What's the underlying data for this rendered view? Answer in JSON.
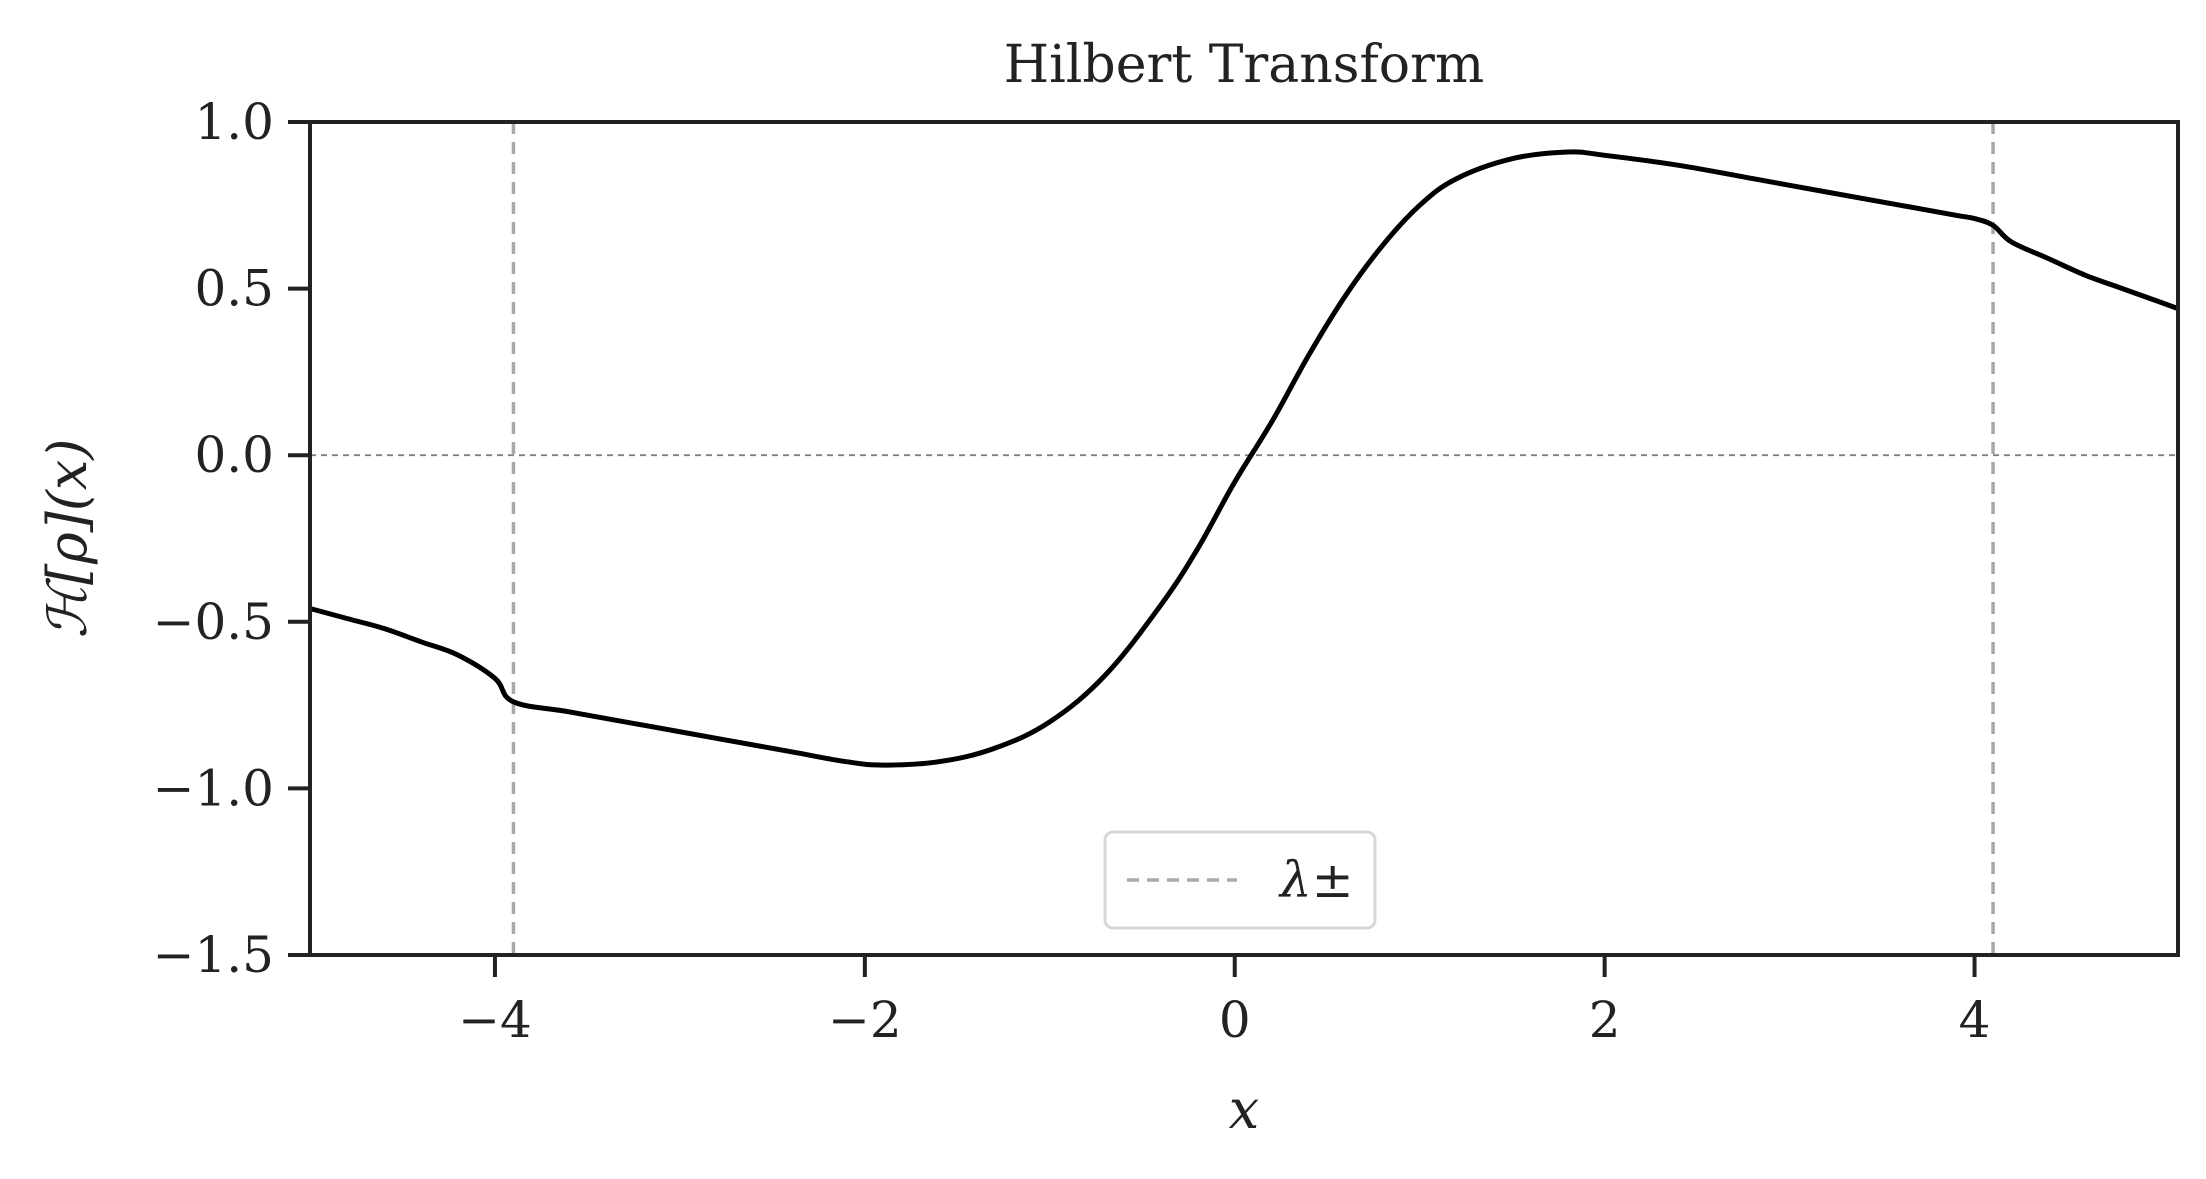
{
  "chart_data": {
    "type": "line",
    "title": "Hilbert Transform",
    "xlabel": "x",
    "ylabel": "ℋ[ρ](x)",
    "xlim": [
      -5.0,
      5.1
    ],
    "ylim": [
      -1.5,
      1.0
    ],
    "xticks": [
      -4,
      -2,
      0,
      2,
      4
    ],
    "xtick_labels": [
      "−4",
      "−2",
      "0",
      "2",
      "4"
    ],
    "yticks": [
      1.0,
      0.5,
      0.0,
      -0.5,
      -1.0,
      -1.5
    ],
    "ytick_labels": [
      "1.0",
      "0.5",
      "0.0",
      "−0.5",
      "−1.0",
      "−1.5"
    ],
    "grid": false,
    "legend": {
      "placement": "lower center",
      "entries": [
        "λ±"
      ]
    },
    "reference_lines": {
      "horizontal_zero": 0.0,
      "vertical": [
        -3.9,
        4.1
      ],
      "vertical_label": "λ±"
    },
    "colors": {
      "curve": "#000000",
      "lambda_lines": "#a8a8a8",
      "zero_line": "#808080",
      "axes": "#222222"
    },
    "series": [
      {
        "x": [
          -5.0,
          -4.8,
          -4.6,
          -4.4,
          -4.2,
          -4.0,
          -3.9,
          -3.6,
          -3.2,
          -2.8,
          -2.4,
          -2.1,
          -1.9,
          -1.6,
          -1.3,
          -1.0,
          -0.7,
          -0.4,
          -0.2,
          0.0,
          0.2,
          0.4,
          0.6,
          0.8,
          1.0,
          1.2,
          1.5,
          1.8,
          2.0,
          2.4,
          2.8,
          3.2,
          3.6,
          3.9,
          4.0,
          4.1,
          4.2,
          4.4,
          4.6,
          4.8,
          5.0,
          5.1
        ],
        "y": [
          -0.46,
          -0.49,
          -0.52,
          -0.56,
          -0.6,
          -0.67,
          -0.74,
          -0.77,
          -0.81,
          -0.85,
          -0.89,
          -0.92,
          -0.93,
          -0.92,
          -0.88,
          -0.8,
          -0.66,
          -0.45,
          -0.28,
          -0.08,
          0.1,
          0.3,
          0.48,
          0.63,
          0.75,
          0.83,
          0.89,
          0.91,
          0.9,
          0.87,
          0.83,
          0.79,
          0.75,
          0.72,
          0.71,
          0.69,
          0.64,
          0.59,
          0.54,
          0.5,
          0.46,
          0.44
        ]
      }
    ]
  }
}
